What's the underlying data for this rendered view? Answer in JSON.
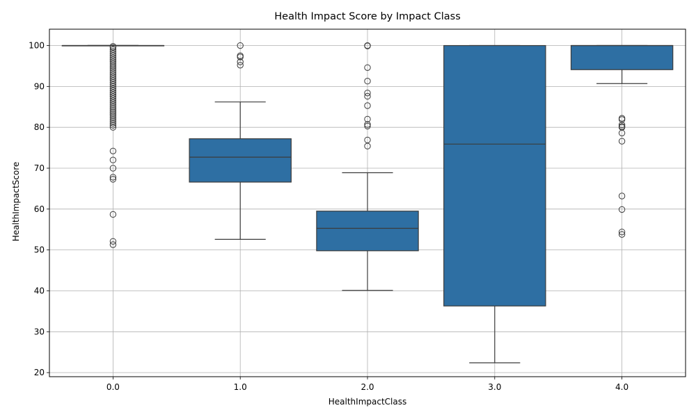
{
  "chart_data": {
    "type": "box",
    "title": "Health Impact Score by Impact Class",
    "xlabel": "HealthImpactClass",
    "ylabel": "HealthImpactScore",
    "ylim": [
      19,
      104
    ],
    "yticks": [
      20,
      30,
      40,
      50,
      60,
      70,
      80,
      90,
      100
    ],
    "grid": true,
    "box_color": "#2e6fa3",
    "line_color": "#3b3b3b",
    "categories": [
      "0.0",
      "1.0",
      "2.0",
      "3.0",
      "4.0"
    ],
    "boxes": [
      {
        "category": "0.0",
        "whisker_low": 100,
        "q1": 100,
        "median": 100,
        "q3": 100,
        "whisker_high": 100,
        "outliers": [
          99.8,
          99.5,
          99.0,
          98.5,
          98.0,
          97.5,
          97.0,
          96.5,
          96.0,
          95.5,
          95.0,
          94.5,
          94.0,
          93.5,
          93.0,
          92.5,
          92.0,
          91.5,
          91.0,
          90.5,
          90.0,
          89.5,
          89.0,
          88.5,
          88.0,
          87.5,
          87.0,
          86.5,
          86.0,
          85.5,
          85.0,
          84.5,
          84.0,
          83.5,
          83.0,
          82.5,
          82.0,
          81.5,
          81.0,
          80.5,
          80.0,
          74.2,
          72.0,
          70.0,
          67.8,
          67.3,
          58.7,
          52.1,
          51.3
        ]
      },
      {
        "category": "1.0",
        "whisker_low": 52.6,
        "q1": 66.6,
        "median": 72.7,
        "q3": 77.2,
        "whisker_high": 86.2,
        "outliers": [
          100,
          97.5,
          97.2,
          96.0,
          95.2
        ]
      },
      {
        "category": "2.0",
        "whisker_low": 40.1,
        "q1": 49.8,
        "median": 55.3,
        "q3": 59.5,
        "whisker_high": 68.9,
        "outliers": [
          100,
          99.9,
          94.6,
          91.3,
          88.4,
          87.6,
          85.3,
          82.0,
          80.7,
          80.3,
          76.9,
          75.4
        ]
      },
      {
        "category": "3.0",
        "whisker_low": 22.4,
        "q1": 36.3,
        "median": 75.9,
        "q3": 100,
        "whisker_high": 100,
        "outliers": []
      },
      {
        "category": "4.0",
        "whisker_low": 90.7,
        "q1": 94.1,
        "median": 100,
        "q3": 100,
        "whisker_high": 100,
        "outliers": [
          82.2,
          81.9,
          80.6,
          80.2,
          80.0,
          78.6,
          76.6,
          63.2,
          59.9,
          54.4,
          53.8
        ]
      }
    ]
  }
}
